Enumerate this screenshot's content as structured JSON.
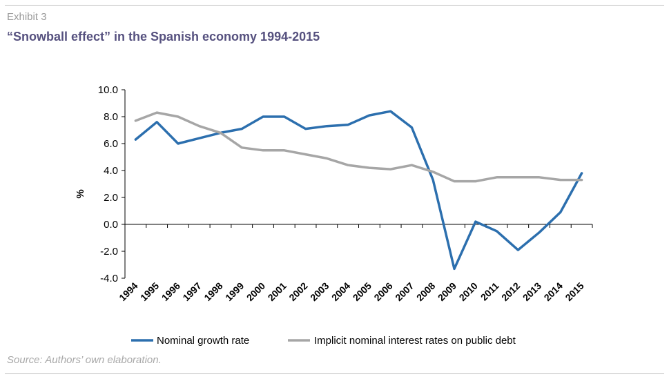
{
  "header": {
    "exhibit": "Exhibit 3",
    "title": "“Snowball effect” in the Spanish economy 1994-2015"
  },
  "footer": {
    "source": "Source: Authors’ own elaboration."
  },
  "chart_data": {
    "type": "line",
    "title": "“Snowball effect” in the Spanish economy 1994-2015",
    "xlabel": "",
    "ylabel": "%",
    "ylim": [
      -4.0,
      10.0
    ],
    "yticks": [
      "-4.0",
      "-2.0",
      "0.0",
      "2.0",
      "4.0",
      "6.0",
      "8.0",
      "10.0"
    ],
    "grid": false,
    "legend_position": "bottom",
    "categories": [
      "1994",
      "1995",
      "1996",
      "1997",
      "1998",
      "1999",
      "2000",
      "2001",
      "2002",
      "2003",
      "2004",
      "2005",
      "2006",
      "2007",
      "2008",
      "2009",
      "2010",
      "2011",
      "2012",
      "2013",
      "2014",
      "2015"
    ],
    "series": [
      {
        "name": "Nominal growth rate",
        "color": "#2c6fae",
        "values": [
          6.3,
          7.6,
          6.0,
          6.4,
          6.8,
          7.1,
          8.0,
          8.0,
          7.1,
          7.3,
          7.4,
          8.1,
          8.4,
          7.2,
          3.3,
          -3.3,
          0.2,
          -0.5,
          -1.9,
          -0.6,
          0.9,
          3.8
        ]
      },
      {
        "name": "Implicit nominal interest rates on public debt",
        "color": "#a6a6a6",
        "values": [
          7.7,
          8.3,
          8.0,
          7.3,
          6.8,
          5.7,
          5.5,
          5.5,
          5.2,
          4.9,
          4.4,
          4.2,
          4.1,
          4.4,
          3.9,
          3.2,
          3.2,
          3.5,
          3.5,
          3.5,
          3.3,
          3.3
        ]
      }
    ]
  }
}
